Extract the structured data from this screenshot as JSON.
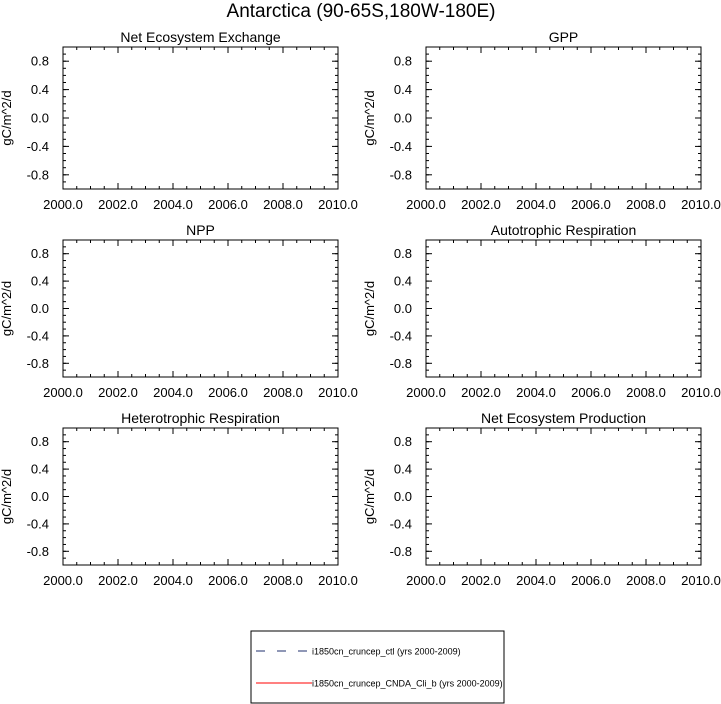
{
  "figure": {
    "title": "Antarctica (90-65S,180W-180E)"
  },
  "chart_data": [
    {
      "type": "line",
      "title": "Net Ecosystem Exchange",
      "xlabel": "",
      "ylabel": "gC/m^2/d",
      "xlim": [
        2000,
        2010
      ],
      "ylim": [
        -1,
        1
      ],
      "xticks": [
        2000,
        2002,
        2004,
        2006,
        2008,
        2010
      ],
      "xticklabels": [
        "2000.0",
        "2002.0",
        "2004.0",
        "2006.0",
        "2008.0",
        "2010.0"
      ],
      "yticks": [
        0.8,
        0.4,
        0.0,
        -0.4,
        -0.8
      ],
      "yticklabels": [
        "0.8",
        "0.4",
        "0.0",
        "-0.4",
        "-0.8"
      ],
      "series": []
    },
    {
      "type": "line",
      "title": "GPP",
      "xlabel": "",
      "ylabel": "gC/m^2/d",
      "xlim": [
        2000,
        2010
      ],
      "ylim": [
        -1,
        1
      ],
      "xticks": [
        2000,
        2002,
        2004,
        2006,
        2008,
        2010
      ],
      "xticklabels": [
        "2000.0",
        "2002.0",
        "2004.0",
        "2006.0",
        "2008.0",
        "2010.0"
      ],
      "yticks": [
        0.8,
        0.4,
        0.0,
        -0.4,
        -0.8
      ],
      "yticklabels": [
        "0.8",
        "0.4",
        "0.0",
        "-0.4",
        "-0.8"
      ],
      "series": []
    },
    {
      "type": "line",
      "title": "NPP",
      "xlabel": "",
      "ylabel": "gC/m^2/d",
      "xlim": [
        2000,
        2010
      ],
      "ylim": [
        -1,
        1
      ],
      "xticks": [
        2000,
        2002,
        2004,
        2006,
        2008,
        2010
      ],
      "xticklabels": [
        "2000.0",
        "2002.0",
        "2004.0",
        "2006.0",
        "2008.0",
        "2010.0"
      ],
      "yticks": [
        0.8,
        0.4,
        0.0,
        -0.4,
        -0.8
      ],
      "yticklabels": [
        "0.8",
        "0.4",
        "0.0",
        "-0.4",
        "-0.8"
      ],
      "series": []
    },
    {
      "type": "line",
      "title": "Autotrophic Respiration",
      "xlabel": "",
      "ylabel": "gC/m^2/d",
      "xlim": [
        2000,
        2010
      ],
      "ylim": [
        -1,
        1
      ],
      "xticks": [
        2000,
        2002,
        2004,
        2006,
        2008,
        2010
      ],
      "xticklabels": [
        "2000.0",
        "2002.0",
        "2004.0",
        "2006.0",
        "2008.0",
        "2010.0"
      ],
      "yticks": [
        0.8,
        0.4,
        0.0,
        -0.4,
        -0.8
      ],
      "yticklabels": [
        "0.8",
        "0.4",
        "0.0",
        "-0.4",
        "-0.8"
      ],
      "series": []
    },
    {
      "type": "line",
      "title": "Heterotrophic Respiration",
      "xlabel": "",
      "ylabel": "gC/m^2/d",
      "xlim": [
        2000,
        2010
      ],
      "ylim": [
        -1,
        1
      ],
      "xticks": [
        2000,
        2002,
        2004,
        2006,
        2008,
        2010
      ],
      "xticklabels": [
        "2000.0",
        "2002.0",
        "2004.0",
        "2006.0",
        "2008.0",
        "2010.0"
      ],
      "yticks": [
        0.8,
        0.4,
        0.0,
        -0.4,
        -0.8
      ],
      "yticklabels": [
        "0.8",
        "0.4",
        "0.0",
        "-0.4",
        "-0.8"
      ],
      "series": []
    },
    {
      "type": "line",
      "title": "Net Ecosystem Production",
      "xlabel": "",
      "ylabel": "gC/m^2/d",
      "xlim": [
        2000,
        2010
      ],
      "ylim": [
        -1,
        1
      ],
      "xticks": [
        2000,
        2002,
        2004,
        2006,
        2008,
        2010
      ],
      "xticklabels": [
        "2000.0",
        "2002.0",
        "2004.0",
        "2006.0",
        "2008.0",
        "2010.0"
      ],
      "yticks": [
        0.8,
        0.4,
        0.0,
        -0.4,
        -0.8
      ],
      "yticklabels": [
        "0.8",
        "0.4",
        "0.0",
        "-0.4",
        "-0.8"
      ],
      "series": []
    }
  ],
  "legend": {
    "entries": [
      {
        "label": "i1850cn_cruncep_ctl (yrs 2000-2009)",
        "color": "#1f2f6e",
        "dash": "dashed"
      },
      {
        "label": "i1850cn_cruncep_CNDA_Cli_b (yrs 2000-2009)",
        "color": "#ff0000",
        "dash": "solid"
      }
    ]
  }
}
